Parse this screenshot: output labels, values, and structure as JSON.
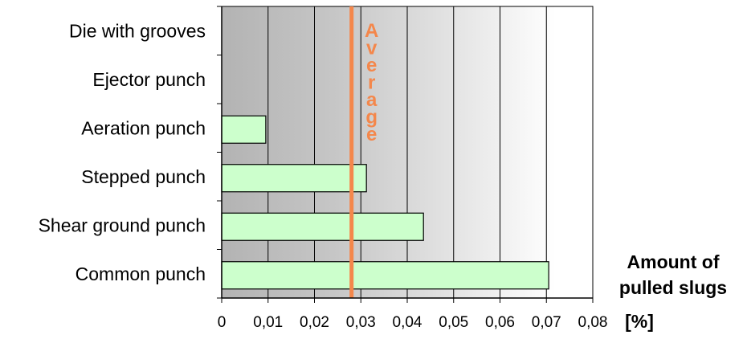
{
  "chart_data": {
    "type": "bar",
    "orientation": "horizontal",
    "categories": [
      "Die with grooves",
      "Ejector punch",
      "Aeration punch",
      "Stepped punch",
      "Shear ground punch",
      "Common punch"
    ],
    "values": [
      0,
      0,
      0.0095,
      0.0312,
      0.0435,
      0.0705
    ],
    "xlim": [
      0,
      0.08
    ],
    "xticks": [
      "0",
      "0,01",
      "0,02",
      "0,03",
      "0,04",
      "0,05",
      "0,06",
      "0,07",
      "0,08"
    ],
    "xtick_values": [
      0,
      0.01,
      0.02,
      0.03,
      0.04,
      0.05,
      0.06,
      0.07,
      0.08
    ],
    "xlabel_line1": "Amount of",
    "xlabel_line2": "pulled slugs",
    "unit": "[%]",
    "average": {
      "value": 0.028,
      "label": "Average",
      "color": "#f4874b"
    },
    "bar_color": "#ccffcc",
    "grid": true,
    "background": "gradient-gray-left-to-white-right"
  }
}
